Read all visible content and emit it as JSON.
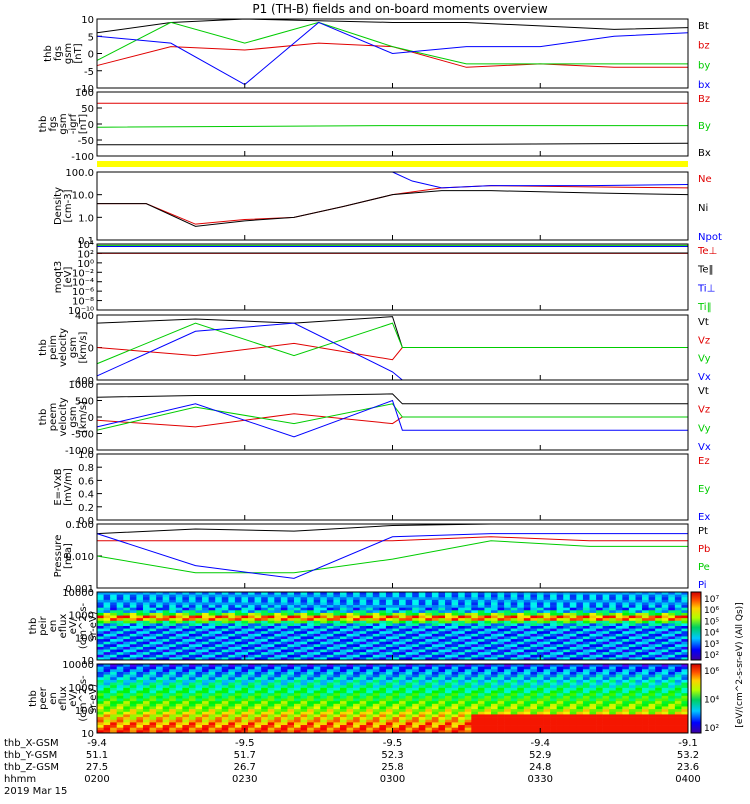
{
  "title": "P1 (TH-B) fields and on-board moments overview",
  "panels": [
    {
      "id": "fgs",
      "ylabel": [
        "thb",
        "fgs",
        "gsm",
        "[nT]"
      ],
      "ticks": [
        10,
        5,
        0,
        -5,
        -10
      ],
      "tick_labels": [
        "10",
        "5",
        "0",
        "-5",
        "-10"
      ],
      "legend": [
        {
          "label": "Bt",
          "color": "#000000"
        },
        {
          "label": "bz",
          "color": "#e00000"
        },
        {
          "label": "by",
          "color": "#00cc00"
        },
        {
          "label": "bx",
          "color": "#0000ff"
        }
      ]
    },
    {
      "id": "fgs-igrf",
      "ylabel": [
        "thb",
        "fgs",
        "gsm",
        "-igrf",
        "[nT]"
      ],
      "ticks": [
        100,
        50,
        0,
        -50,
        -100
      ],
      "tick_labels": [
        "100",
        "50",
        "0",
        "-50",
        "-100"
      ],
      "legend": [
        {
          "label": "Bz",
          "color": "#e00000"
        },
        {
          "label": "By",
          "color": "#00cc00"
        },
        {
          "label": "Bx",
          "color": "#000000"
        }
      ]
    },
    {
      "id": "density",
      "ylabel": [
        "Density",
        "[cm-3]"
      ],
      "ticks": [
        100.0,
        10.0,
        1.0,
        0.1
      ],
      "tick_labels": [
        "100.0",
        "10.0",
        "1.0",
        "0.1"
      ],
      "legend": [
        {
          "label": "Ne",
          "color": "#e00000"
        },
        {
          "label": "Ni",
          "color": "#000000"
        },
        {
          "label": "Npot",
          "color": "#0000ff"
        }
      ]
    },
    {
      "id": "temperature",
      "ylabel": [
        "moqt3",
        "[eV]"
      ],
      "ticks": [
        "10^4",
        "10^2",
        "10^0",
        "10^-2",
        "10^-4",
        "10^-6",
        "10^-8",
        "10^-10"
      ],
      "tick_labels": [
        "10⁴",
        "10²",
        "10⁰",
        "10⁻²",
        "10⁻⁴",
        "10⁻⁶",
        "10⁻⁸",
        "10⁻¹⁰"
      ],
      "legend": [
        {
          "label": "Te⊥",
          "color": "#e00000"
        },
        {
          "label": "Te‖",
          "color": "#000000"
        },
        {
          "label": "Ti⊥",
          "color": "#0000ff"
        },
        {
          "label": "Ti‖",
          "color": "#00cc00"
        }
      ]
    },
    {
      "id": "ion-velocity",
      "ylabel": [
        "thb",
        "peim",
        "velocity",
        "gsm",
        "[km/s]"
      ],
      "ticks": [
        400,
        0,
        -400
      ],
      "tick_labels": [
        "400",
        "0",
        "-400"
      ],
      "legend": [
        {
          "label": "Vt",
          "color": "#000000"
        },
        {
          "label": "Vz",
          "color": "#e00000"
        },
        {
          "label": "Vy",
          "color": "#00cc00"
        },
        {
          "label": "Vx",
          "color": "#0000ff"
        }
      ]
    },
    {
      "id": "electron-velocity",
      "ylabel": [
        "thb",
        "peem",
        "velocity",
        "gsm",
        "[km/s]"
      ],
      "ticks": [
        1000,
        500,
        0,
        -500,
        -1000
      ],
      "tick_labels": [
        "1000",
        "500",
        "0",
        "-500",
        "-1000"
      ],
      "legend": [
        {
          "label": "Vt",
          "color": "#000000"
        },
        {
          "label": "Vz",
          "color": "#e00000"
        },
        {
          "label": "Vy",
          "color": "#00cc00"
        },
        {
          "label": "Vx",
          "color": "#0000ff"
        }
      ]
    },
    {
      "id": "e-field",
      "ylabel": [
        "E=-VxB",
        "[mV/m]"
      ],
      "ticks": [
        1.0,
        0.8,
        0.6,
        0.4,
        0.2,
        0.0
      ],
      "tick_labels": [
        "1.0",
        "0.8",
        "0.6",
        "0.4",
        "0.2",
        "0.0"
      ],
      "legend": [
        {
          "label": "Ez",
          "color": "#e00000"
        },
        {
          "label": "Ey",
          "color": "#00cc00"
        },
        {
          "label": "Ex",
          "color": "#0000ff"
        }
      ]
    },
    {
      "id": "pressure",
      "ylabel": [
        "Pressure",
        "[nPa]"
      ],
      "ticks": [
        0.1,
        0.01,
        0.001
      ],
      "tick_labels": [
        "0.100",
        "0.010",
        "0.001"
      ],
      "legend": [
        {
          "label": "Pt",
          "color": "#000000"
        },
        {
          "label": "Pb",
          "color": "#e00000"
        },
        {
          "label": "Pe",
          "color": "#00cc00"
        },
        {
          "label": "Pi",
          "color": "#0000ff"
        }
      ]
    },
    {
      "id": "ion-spectrogram",
      "ylabel": [
        "thb",
        "peir",
        "en",
        "eflux",
        "eV/",
        "(cm^2-s-",
        "sr-eV)"
      ],
      "ticks": [
        10000,
        1000,
        100,
        10
      ],
      "tick_labels": [
        "10000",
        "1000",
        "100",
        "10"
      ],
      "legend": []
    },
    {
      "id": "electron-spectrogram",
      "ylabel": [
        "thb",
        "peer",
        "en",
        "eflux",
        "eV/",
        "(cm^2-s-",
        "sr-eV)"
      ],
      "ticks": [
        10000,
        1000,
        100,
        10
      ],
      "tick_labels": [
        "10000",
        "1000",
        "100",
        "10"
      ],
      "legend": []
    }
  ],
  "colorbar": {
    "ticks_top": [
      "10⁷",
      "10⁶",
      "10⁵",
      "10⁴",
      "10³",
      "10²"
    ],
    "ticks_bottom": [
      "10⁶",
      "10⁴",
      "10²"
    ],
    "label": "[eV/(cm^2-s-sr-eV)]",
    "sublabel": "[eV/(cm^2-s-sr-eV) (All Qs)]"
  },
  "xaxis": {
    "rows": [
      {
        "label": "thb_X-GSM",
        "values": [
          "-9.4",
          "-9.5",
          "-9.5",
          "-9.4",
          "-9.1"
        ]
      },
      {
        "label": "thb_Y-GSM",
        "values": [
          "51.1",
          "51.7",
          "52.3",
          "52.9",
          "53.2"
        ]
      },
      {
        "label": "thb_Z-GSM",
        "values": [
          "27.5",
          "26.7",
          "25.8",
          "24.8",
          "23.6"
        ]
      },
      {
        "label": "hhmm",
        "values": [
          "0200",
          "0230",
          "0300",
          "0330",
          "0400"
        ]
      }
    ],
    "date": "2019 Mar 15"
  },
  "chart_data": {
    "type": "line",
    "title": "P1 (TH-B) fields and on-board moments overview",
    "x": [
      "0200",
      "0230",
      "0300",
      "0330",
      "0400"
    ],
    "xlim": [
      "02:00",
      "04:00"
    ],
    "date": "2019 Mar 15",
    "panels": [
      {
        "name": "fgs gsm [nT]",
        "ylim": [
          -10,
          10
        ],
        "series": [
          {
            "name": "Bt",
            "times": [
              0,
              15,
              30,
              45,
              60,
              75,
              90,
              105,
              120
            ],
            "values": [
              6,
              9,
              10,
              9.5,
              9,
              9,
              8,
              7,
              7.5
            ]
          },
          {
            "name": "bz",
            "times": [
              0,
              15,
              30,
              45,
              60,
              75,
              90,
              105,
              120
            ],
            "values": [
              -3.5,
              2,
              1,
              3,
              2,
              -4,
              -3,
              -4,
              -4
            ]
          },
          {
            "name": "by",
            "times": [
              0,
              15,
              30,
              45,
              60,
              75,
              90,
              105,
              120
            ],
            "values": [
              -2,
              9,
              3,
              9,
              2,
              -3,
              -3,
              -3,
              -3
            ]
          },
          {
            "name": "bx",
            "times": [
              0,
              15,
              30,
              45,
              60,
              75,
              90,
              105,
              120
            ],
            "values": [
              5,
              3,
              -9,
              9,
              0,
              2,
              2,
              5,
              6
            ]
          }
        ]
      },
      {
        "name": "fgs gsm -igrf [nT]",
        "ylim": [
          -100,
          100
        ],
        "series": [
          {
            "name": "Bz",
            "times": [
              0,
              60,
              120
            ],
            "values": [
              65,
              65,
              65
            ]
          },
          {
            "name": "By",
            "times": [
              0,
              60,
              120
            ],
            "values": [
              -10,
              -5,
              -5
            ]
          },
          {
            "name": "Bx",
            "times": [
              0,
              60,
              120
            ],
            "values": [
              -65,
              -65,
              -60
            ]
          }
        ]
      },
      {
        "name": "Density [cm-3]",
        "scale": "log",
        "ylim": [
          0.1,
          100
        ],
        "series": [
          {
            "name": "Ne",
            "times": [
              0,
              10,
              20,
              30,
              40,
              50,
              60,
              70,
              80,
              100,
              120
            ],
            "values": [
              4,
              4,
              0.5,
              0.8,
              1.0,
              3,
              10,
              20,
              25,
              22,
              20
            ]
          },
          {
            "name": "Ni",
            "times": [
              0,
              10,
              20,
              30,
              40,
              50,
              60,
              70,
              80,
              100,
              120
            ],
            "values": [
              4,
              4,
              0.4,
              0.7,
              1.0,
              3,
              10,
              15,
              15,
              12,
              10
            ]
          },
          {
            "name": "Npot",
            "times": [
              60,
              64,
              70,
              80,
              100,
              120
            ],
            "values": [
              100,
              40,
              20,
              25,
              25,
              28
            ]
          }
        ]
      },
      {
        "name": "moqt3 [eV]",
        "scale": "log",
        "ylim": [
          1e-10,
          10000
        ],
        "series": [
          {
            "name": "Te⊥",
            "times": [
              0,
              120
            ],
            "values": [
              100,
              100
            ]
          },
          {
            "name": "Te‖",
            "times": [
              0,
              120
            ],
            "values": [
              120,
              120
            ]
          },
          {
            "name": "Ti⊥",
            "times": [
              0,
              120
            ],
            "values": [
              3000,
              3000
            ]
          },
          {
            "name": "Ti‖",
            "times": [
              0,
              120
            ],
            "values": [
              5000,
              5000
            ]
          }
        ]
      },
      {
        "name": "peim velocity gsm [km/s]",
        "ylim": [
          -400,
          400
        ],
        "series": [
          {
            "name": "Vt",
            "times": [
              0,
              20,
              40,
              60,
              62,
              80,
              100,
              120
            ],
            "values": [
              300,
              350,
              300,
              380,
              0,
              0,
              0,
              0
            ]
          },
          {
            "name": "Vz",
            "times": [
              0,
              20,
              40,
              60,
              62,
              80,
              100,
              120
            ],
            "values": [
              0,
              -100,
              50,
              -150,
              0,
              0,
              0,
              0
            ]
          },
          {
            "name": "Vy",
            "times": [
              0,
              20,
              40,
              60,
              62,
              80,
              100,
              120
            ],
            "values": [
              -200,
              300,
              -100,
              300,
              0,
              0,
              0,
              0
            ]
          },
          {
            "name": "Vx",
            "times": [
              0,
              20,
              40,
              60,
              62,
              80,
              100,
              120
            ],
            "values": [
              -350,
              200,
              300,
              -300,
              -400,
              -400,
              -400,
              -400
            ]
          }
        ]
      },
      {
        "name": "peem velocity gsm [km/s]",
        "ylim": [
          -1000,
          1000
        ],
        "series": [
          {
            "name": "Vt",
            "times": [
              0,
              20,
              40,
              60,
              62,
              80,
              100,
              120
            ],
            "values": [
              600,
              650,
              650,
              700,
              400,
              400,
              400,
              400
            ]
          },
          {
            "name": "Vz",
            "times": [
              0,
              20,
              40,
              60,
              62,
              80,
              100,
              120
            ],
            "values": [
              -100,
              -300,
              100,
              -200,
              0,
              0,
              0,
              0
            ]
          },
          {
            "name": "Vy",
            "times": [
              0,
              20,
              40,
              60,
              62,
              80,
              100,
              120
            ],
            "values": [
              -400,
              300,
              -200,
              400,
              0,
              0,
              0,
              0
            ]
          },
          {
            "name": "Vx",
            "times": [
              0,
              20,
              40,
              60,
              62,
              80,
              100,
              120
            ],
            "values": [
              -300,
              400,
              -600,
              500,
              -400,
              -400,
              -400,
              -400
            ]
          }
        ]
      },
      {
        "name": "E=-VxB [mV/m]",
        "ylim": [
          0,
          1
        ],
        "series": []
      },
      {
        "name": "Pressure [nPa]",
        "scale": "log",
        "ylim": [
          0.001,
          0.1
        ],
        "series": [
          {
            "name": "Pt",
            "times": [
              0,
              20,
              40,
              60,
              80,
              100,
              120
            ],
            "values": [
              0.05,
              0.07,
              0.06,
              0.09,
              0.1,
              0.1,
              0.1
            ]
          },
          {
            "name": "Pb",
            "times": [
              0,
              20,
              40,
              60,
              80,
              100,
              120
            ],
            "values": [
              0.03,
              0.03,
              0.03,
              0.03,
              0.04,
              0.03,
              0.03
            ]
          },
          {
            "name": "Pe",
            "times": [
              0,
              20,
              40,
              60,
              80,
              100,
              120
            ],
            "values": [
              0.01,
              0.003,
              0.003,
              0.008,
              0.03,
              0.02,
              0.02
            ]
          },
          {
            "name": "Pi",
            "times": [
              0,
              20,
              40,
              60,
              80,
              100,
              120
            ],
            "values": [
              0.05,
              0.005,
              0.002,
              0.04,
              0.05,
              0.05,
              0.05
            ]
          }
        ]
      },
      {
        "name": "peir en eflux",
        "type": "heatmap",
        "ylim": [
          10,
          10000
        ],
        "scale": "log"
      },
      {
        "name": "peer en eflux",
        "type": "heatmap",
        "ylim": [
          10,
          10000
        ],
        "scale": "log"
      }
    ]
  }
}
